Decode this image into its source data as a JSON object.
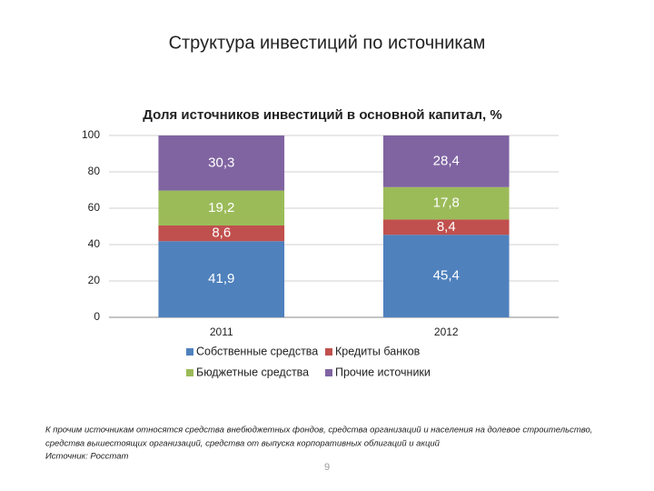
{
  "slide": {
    "title": "Структура инвестиций по источникам",
    "footnote": [
      "К прочим источникам относятся средства внебюджетных фондов, средства организаций и населения на долевое строительство,",
      "средства вышестоящих организаций, средства от выпуска корпоративных облигаций и акций"
    ],
    "source": "Источник: Росстат",
    "page": 9
  },
  "chart_data": {
    "type": "stacked_bar",
    "title": "Доля источников инвестиций в основной капитал, %",
    "categories": [
      "2011",
      "2012"
    ],
    "series": [
      {
        "name": "Собственные средства",
        "color": "#4f81bd",
        "values": [
          41.9,
          45.4
        ],
        "value_labels": [
          "41,9",
          "45,4"
        ]
      },
      {
        "name": "Кредиты банков",
        "color": "#c0504d",
        "values": [
          8.6,
          8.4
        ],
        "value_labels": [
          "8,6",
          "8,4"
        ]
      },
      {
        "name": "Бюджетные средства",
        "color": "#9bbb59",
        "values": [
          19.2,
          17.8
        ],
        "value_labels": [
          "19,2",
          "17,8"
        ]
      },
      {
        "name": "Прочие источники",
        "color": "#8064a2",
        "values": [
          30.3,
          28.4
        ],
        "value_labels": [
          "30,3",
          "28,4"
        ]
      }
    ],
    "ylim": [
      0,
      100
    ],
    "yticks": [
      0,
      20,
      40,
      60,
      80,
      100
    ],
    "grid": true,
    "legend": "bottom"
  }
}
